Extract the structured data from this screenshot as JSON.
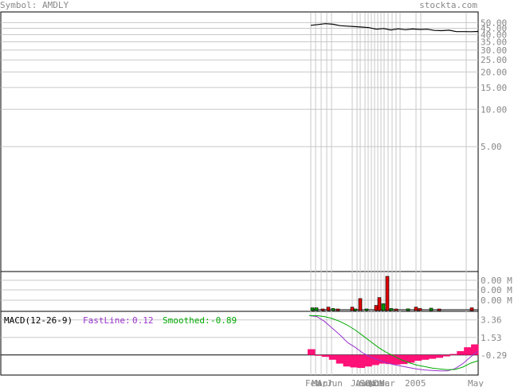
{
  "header": {
    "symbol_label": "Symbol: AMDLY",
    "site": "stockta.com"
  },
  "chart_data": [
    {
      "type": "line",
      "name": "price",
      "y_scale": "log",
      "ytick_labels": [
        "50.00",
        "45.00",
        "40.00",
        "35.00",
        "30.00",
        "25.00",
        "20.00",
        "15.00",
        "10.00",
        "5.00"
      ],
      "ytick_values": [
        50,
        45,
        40,
        35,
        30,
        25,
        20,
        15,
        10,
        5
      ],
      "ylim": [
        0.5,
        60
      ],
      "x_labels": [
        "Feb",
        "Mar",
        "Apr",
        "Jun",
        "Jul",
        "Aug",
        "Sep",
        "Oct",
        "Nov",
        "Dec",
        "Mar",
        "2005",
        "May"
      ],
      "series": [
        {
          "values": [
            47.5,
            48.2,
            49.0,
            48.5,
            47.2,
            46.8,
            46.4,
            46.0,
            45.5,
            44.2,
            44.8,
            43.6,
            44.5,
            43.8,
            44.4,
            44.0,
            44.2,
            43.2,
            43.0,
            43.4,
            42.3,
            42.3,
            42.2,
            42.4
          ]
        }
      ]
    },
    {
      "type": "bar",
      "name": "volume",
      "ytick_labels": [
        "0.00 M",
        "0.00 M",
        "0.00 M"
      ],
      "bars": [
        {
          "h": 0.08,
          "c": "green"
        },
        {
          "h": 0.08,
          "c": "green"
        },
        {
          "h": 0.04,
          "c": "red"
        },
        {
          "h": 0.1,
          "c": "red"
        },
        {
          "h": 0.06,
          "c": "green"
        },
        {
          "h": 0.04,
          "c": "red"
        },
        {
          "h": 0.1,
          "c": "red"
        },
        {
          "h": 0.03,
          "c": "green"
        },
        {
          "h": 0.35,
          "c": "red"
        },
        {
          "h": 0.03,
          "c": "green"
        },
        {
          "h": 0.15,
          "c": "red"
        },
        {
          "h": 0.38,
          "c": "red"
        },
        {
          "h": 0.2,
          "c": "green"
        },
        {
          "h": 1.0,
          "c": "red"
        },
        {
          "h": 0.06,
          "c": "green"
        },
        {
          "h": 0.02,
          "c": "red"
        },
        {
          "h": 0.05,
          "c": "green"
        },
        {
          "h": 0.1,
          "c": "red"
        },
        {
          "h": 0.06,
          "c": "red"
        },
        {
          "h": 0.07,
          "c": "green"
        },
        {
          "h": 0.02,
          "c": "red"
        },
        {
          "h": 0.08,
          "c": "red"
        }
      ]
    },
    {
      "type": "line",
      "name": "macd",
      "title": "MACD(12-26-9)",
      "fast_label": "FastLine:",
      "fast_value": "0.12",
      "smooth_label": "Smoothed:",
      "smooth_value": "-0.89",
      "ytick_labels": [
        "3.36",
        "1.53",
        "-0.29"
      ],
      "ytick_values": [
        3.36,
        1.53,
        -0.29
      ],
      "ylim": [
        -2.3,
        4.0
      ],
      "series": [
        {
          "name": "FastLine",
          "color": "#9933cc",
          "values": [
            3.8,
            3.7,
            3.2,
            2.5,
            1.8,
            1.0,
            0.5,
            -0.1,
            -0.5,
            -0.8,
            -1.1,
            -1.3,
            -1.45,
            -1.6,
            -1.75,
            -1.85,
            -1.9,
            -1.95,
            -1.95,
            -1.7,
            -1.2,
            -0.5,
            0.1
          ]
        },
        {
          "name": "Smoothed",
          "color": "#00aa00",
          "values": [
            3.8,
            3.8,
            3.7,
            3.5,
            3.2,
            2.8,
            2.3,
            1.7,
            1.1,
            0.5,
            0.0,
            -0.4,
            -0.8,
            -1.1,
            -1.35,
            -1.5,
            -1.65,
            -1.75,
            -1.82,
            -1.8,
            -1.55,
            -1.15,
            -0.89
          ]
        }
      ],
      "hist": [
        0.6,
        -0.05,
        -0.2,
        -0.5,
        -0.9,
        -1.2,
        -1.3,
        -1.35,
        -1.2,
        -1.05,
        -0.9,
        -0.95,
        -1.0,
        -0.95,
        -0.8,
        -0.6,
        -0.5,
        -0.4,
        -0.3,
        -0.15,
        0.1,
        0.4,
        0.8,
        1.1
      ]
    }
  ]
}
